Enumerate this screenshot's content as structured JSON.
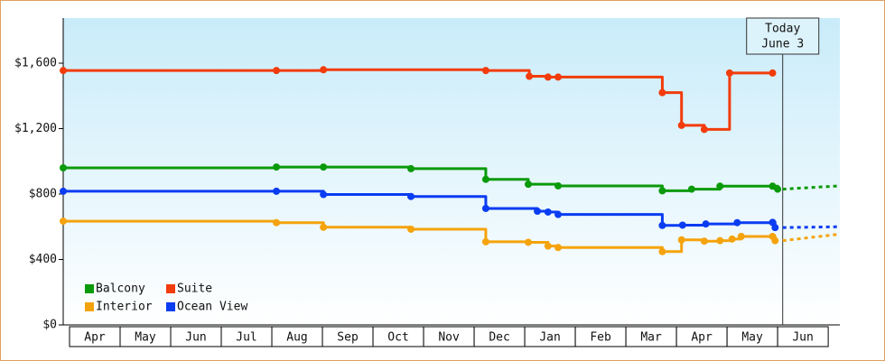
{
  "chart_data": {
    "type": "step",
    "ylim": [
      0,
      1876
    ],
    "yticks": [
      {
        "value": 0,
        "label": "$0"
      },
      {
        "value": 400,
        "label": "$400"
      },
      {
        "value": 800,
        "label": "$800"
      },
      {
        "value": 1200,
        "label": "$1,200"
      },
      {
        "value": 1600,
        "label": "$1,600"
      }
    ],
    "xlim": [
      -0.125,
      15.23
    ],
    "xticks": [
      {
        "value": 0.5,
        "label": "Apr"
      },
      {
        "value": 1.5,
        "label": "May"
      },
      {
        "value": 2.5,
        "label": "Jun"
      },
      {
        "value": 3.5,
        "label": "Jul"
      },
      {
        "value": 4.5,
        "label": "Aug"
      },
      {
        "value": 5.5,
        "label": "Sep"
      },
      {
        "value": 6.5,
        "label": "Oct"
      },
      {
        "value": 7.5,
        "label": "Nov"
      },
      {
        "value": 8.5,
        "label": "Dec"
      },
      {
        "value": 9.5,
        "label": "Jan"
      },
      {
        "value": 10.5,
        "label": "Feb"
      },
      {
        "value": 11.5,
        "label": "Mar"
      },
      {
        "value": 12.5,
        "label": "Apr"
      },
      {
        "value": 13.5,
        "label": "May"
      },
      {
        "value": 14.5,
        "label": "Jun"
      }
    ],
    "today": {
      "x": 14.1,
      "lines": [
        "Today",
        "June 3"
      ]
    },
    "forecast_x": [
      14.1,
      15.23
    ],
    "legend": "bottom-left",
    "series": [
      {
        "name": "Balcony",
        "color": "#0a9a0a",
        "x": [
          -0.125,
          4.09,
          5.02,
          6.75,
          8.23,
          9.07,
          9.66,
          11.72,
          12.3,
          12.86,
          13.9,
          14.0
        ],
        "values": [
          960,
          965,
          965,
          955,
          890,
          860,
          850,
          820,
          830,
          848,
          848,
          830
        ],
        "forecast": [
          830,
          850
        ]
      },
      {
        "name": "Suite",
        "color": "#f23c0c",
        "x": [
          -0.125,
          4.09,
          5.02,
          8.23,
          9.09,
          9.46,
          9.66,
          11.72,
          12.1,
          12.55,
          13.05,
          13.9
        ],
        "values": [
          1555,
          1555,
          1560,
          1555,
          1520,
          1515,
          1515,
          1420,
          1220,
          1195,
          1540,
          1540
        ]
      },
      {
        "name": "Interior",
        "color": "#f5a30c",
        "x": [
          -0.125,
          4.09,
          5.02,
          6.75,
          8.23,
          9.07,
          9.46,
          9.66,
          11.72,
          12.1,
          12.55,
          12.86,
          13.1,
          13.28,
          13.9,
          13.95
        ],
        "values": [
          634,
          625,
          597,
          585,
          508,
          505,
          482,
          473,
          448,
          520,
          512,
          515,
          525,
          541,
          541,
          515
        ],
        "forecast": [
          515,
          555
        ]
      },
      {
        "name": "Ocean View",
        "color": "#0a3cf2",
        "x": [
          -0.125,
          4.09,
          5.02,
          6.75,
          8.23,
          9.25,
          9.46,
          9.66,
          11.72,
          12.12,
          12.58,
          13.2,
          13.9,
          13.95
        ],
        "values": [
          817,
          817,
          797,
          785,
          712,
          695,
          690,
          675,
          608,
          610,
          617,
          625,
          627,
          595
        ],
        "forecast": [
          595,
          600
        ]
      }
    ]
  }
}
